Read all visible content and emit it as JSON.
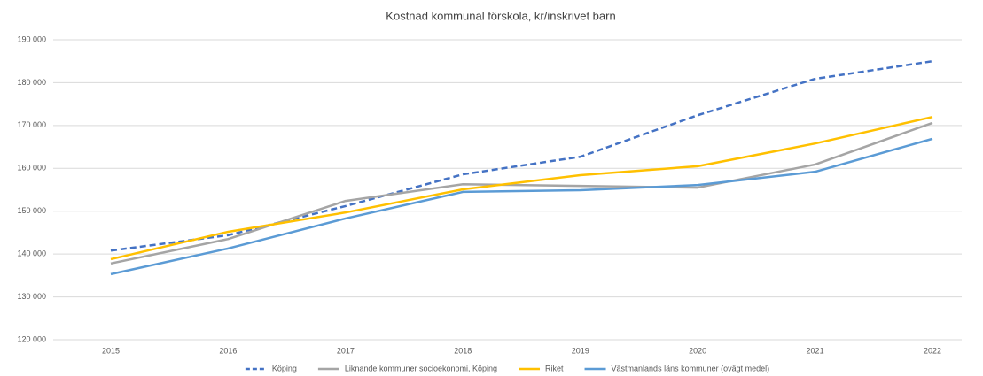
{
  "chart_data": {
    "type": "line",
    "title": "Kostnad kommunal förskola, kr/inskrivet barn",
    "categories": [
      "2015",
      "2016",
      "2017",
      "2018",
      "2019",
      "2020",
      "2021",
      "2022"
    ],
    "series": [
      {
        "name": "Köping",
        "color": "#4472c4",
        "dashed": true,
        "values": [
          140800,
          144400,
          151200,
          158600,
          162700,
          172400,
          180900,
          185000
        ]
      },
      {
        "name": "Liknande kommuner socioekonomi, Köping",
        "color": "#a5a5a5",
        "values": [
          137800,
          143500,
          152400,
          156300,
          155900,
          155500,
          160900,
          170600
        ]
      },
      {
        "name": "Riket",
        "color": "#ffc000",
        "values": [
          138800,
          145200,
          149700,
          155100,
          158400,
          160500,
          165800,
          172000
        ]
      },
      {
        "name": "Västmanlands läns kommuner (ovägt medel)",
        "color": "#5b9bd5",
        "values": [
          135300,
          141300,
          148300,
          154500,
          154900,
          156100,
          159200,
          166900
        ]
      }
    ],
    "ylim": [
      120000,
      190000
    ],
    "yticks": [
      {
        "value": 120000,
        "label": "120 000"
      },
      {
        "value": 130000,
        "label": "130 000"
      },
      {
        "value": 140000,
        "label": "140 000"
      },
      {
        "value": 150000,
        "label": "150 000"
      },
      {
        "value": 160000,
        "label": "160 000"
      },
      {
        "value": 170000,
        "label": "170 000"
      },
      {
        "value": 180000,
        "label": "180 000"
      },
      {
        "value": 190000,
        "label": "190 000"
      }
    ],
    "grid": true,
    "legend": "bottom"
  }
}
